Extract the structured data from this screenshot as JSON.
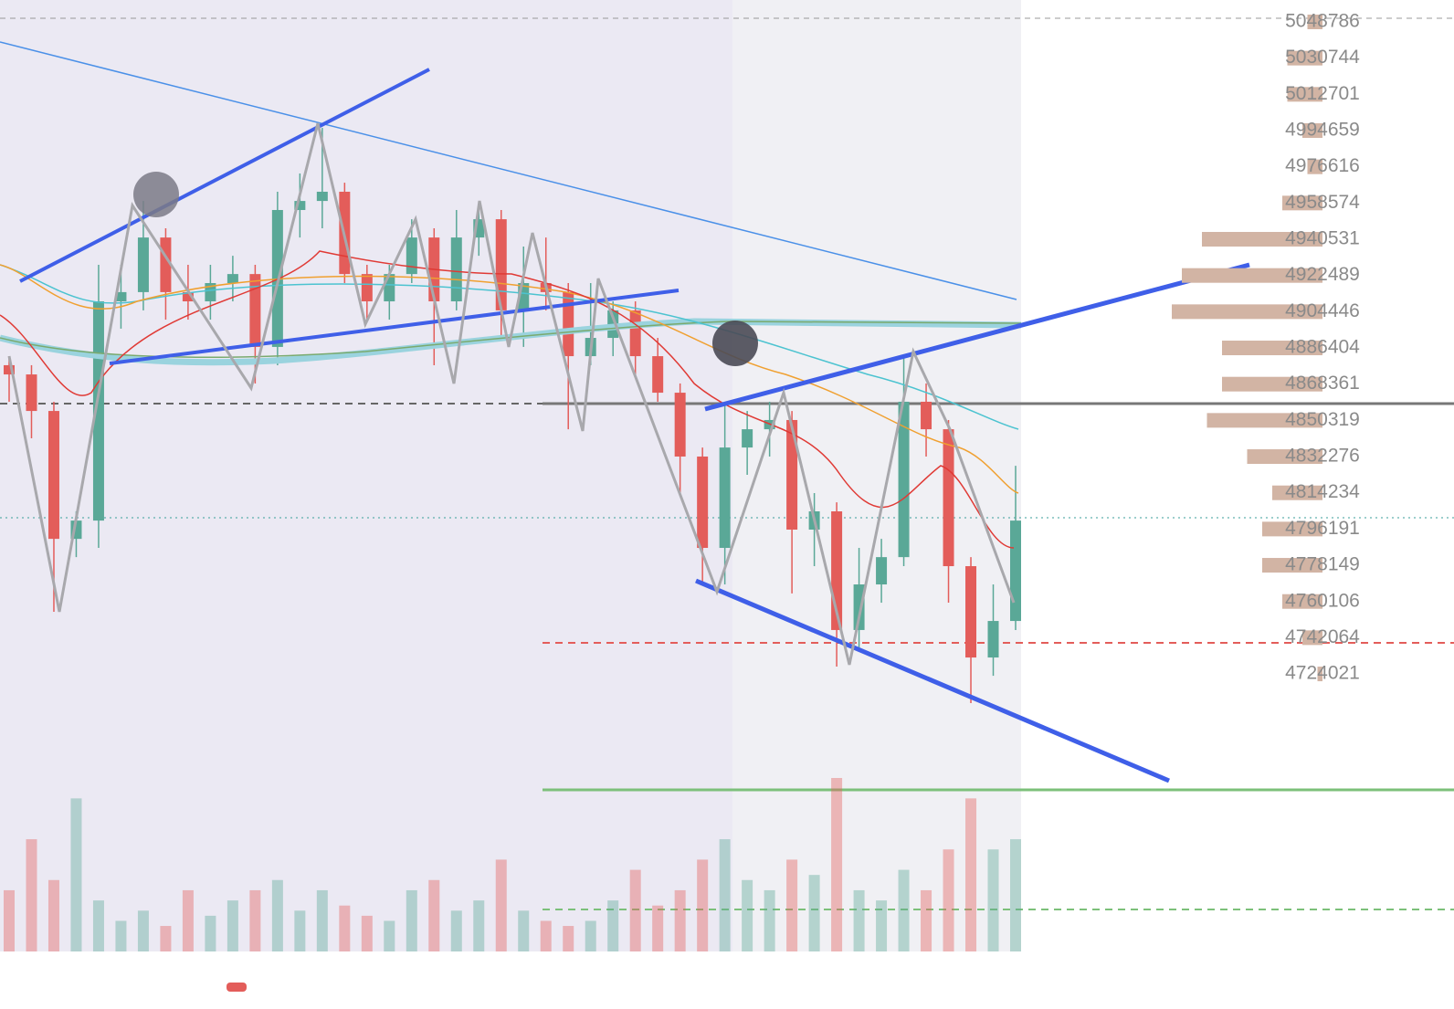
{
  "chart_data": {
    "type": "candlestick",
    "open": [
      4877800,
      4873200,
      4855000,
      4791300,
      4800400,
      4909600,
      4914200,
      4941400,
      4914200,
      4909600,
      4918700,
      4923200,
      4886900,
      4955100,
      4959600,
      4964200,
      4923200,
      4909600,
      4923200,
      4941400,
      4909600,
      4941400,
      4950500,
      4905100,
      4918700,
      4914200,
      4882300,
      4891400,
      4905100,
      4882300,
      4864100,
      4832300,
      4786800,
      4836800,
      4845900,
      4850500,
      4795900,
      4805000,
      4745900,
      4768600,
      4782200,
      4859600,
      4845900,
      4777700,
      4732200,
      4750400
    ],
    "high": [
      4882300,
      4877800,
      4859600,
      4805000,
      4927800,
      4927800,
      4959600,
      4946000,
      4927800,
      4927800,
      4932300,
      4927800,
      4964200,
      4973300,
      4996000,
      4968700,
      4927800,
      4927800,
      4950500,
      4946000,
      4955100,
      4959600,
      4955100,
      4936900,
      4941400,
      4918700,
      4918700,
      4909600,
      4909600,
      4891400,
      4868700,
      4836800,
      4859600,
      4855000,
      4859600,
      4855000,
      4814100,
      4809500,
      4786800,
      4791300,
      4882300,
      4868700,
      4850500,
      4782200,
      4768600,
      4827700
    ],
    "low": [
      4859600,
      4841400,
      4755000,
      4782200,
      4786800,
      4896000,
      4905100,
      4900500,
      4900500,
      4900500,
      4909600,
      4868700,
      4877800,
      4941400,
      4946000,
      4918700,
      4900500,
      4900500,
      4918700,
      4877800,
      4905100,
      4932300,
      4891400,
      4886900,
      4905100,
      4845900,
      4877800,
      4882300,
      4873200,
      4859600,
      4814100,
      4768600,
      4768600,
      4823200,
      4832300,
      4764100,
      4777700,
      4727700,
      4736800,
      4759500,
      4777700,
      4832300,
      4759500,
      4709500,
      4723100,
      4745900
    ],
    "close": [
      4873200,
      4855000,
      4791300,
      4800400,
      4909600,
      4914200,
      4941400,
      4914200,
      4909600,
      4918700,
      4923200,
      4886900,
      4955100,
      4959600,
      4964200,
      4923200,
      4909600,
      4923200,
      4941400,
      4909600,
      4941400,
      4950500,
      4905100,
      4918700,
      4914200,
      4882300,
      4891400,
      4905100,
      4882300,
      4864100,
      4832300,
      4786800,
      4836800,
      4845900,
      4850500,
      4795900,
      4805000,
      4745900,
      4768600,
      4782200,
      4859600,
      4845900,
      4777700,
      4732200,
      4750400,
      4800400
    ],
    "volume": [
      60,
      110,
      70,
      150,
      50,
      30,
      40,
      25,
      60,
      35,
      50,
      60,
      70,
      40,
      60,
      45,
      35,
      30,
      60,
      70,
      40,
      50,
      90,
      40,
      30,
      25,
      30,
      50,
      80,
      45,
      60,
      90,
      110,
      70,
      60,
      90,
      75,
      170,
      60,
      50,
      80,
      60,
      100,
      150,
      100,
      110
    ],
    "depth": [
      15,
      35,
      35,
      20,
      15,
      40,
      120,
      140,
      150,
      100,
      100,
      115,
      75,
      50,
      60,
      60,
      40,
      20,
      5
    ],
    "up_color": "#5aa897",
    "down_color": "#e35d5a",
    "depth_color": "#d2b4a4",
    "ylim": [
      4559400,
      5059700
    ],
    "yticks": [
      5048786,
      5030744,
      5012701,
      4994659,
      4976616,
      4958574,
      4940531,
      4922489,
      4904446,
      4886404,
      4868361,
      4850319,
      4832276,
      4814234,
      4796191,
      4778149,
      4760106,
      4742064,
      4724021
    ]
  }
}
